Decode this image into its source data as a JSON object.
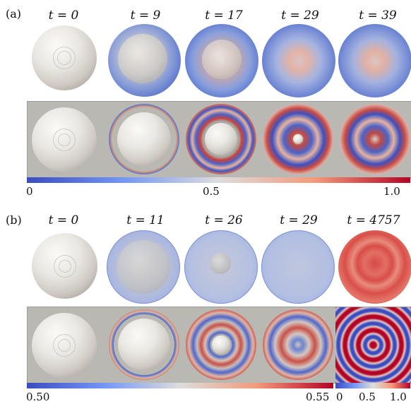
{
  "panel_a": {
    "label": "(a)",
    "times": [
      "t = 0",
      "t = 9",
      "t = 17",
      "t = 29",
      "t = 39"
    ],
    "colorbar": {
      "min": "0",
      "mid": "0.5",
      "max": "1.0"
    }
  },
  "panel_b": {
    "label": "(b)",
    "times": [
      "t = 0",
      "t = 11",
      "t = 26",
      "t = 29",
      "t = 4757"
    ],
    "colorbar_main": {
      "min": "0.50",
      "max": "0.55"
    },
    "colorbar_inset": {
      "min": "0",
      "mid": "0.5",
      "max": "1.0"
    }
  },
  "colors": {
    "blue": "#3b4cc0",
    "white": "#dddddd",
    "red": "#b40426",
    "background_grey": "#b9b8b2"
  }
}
